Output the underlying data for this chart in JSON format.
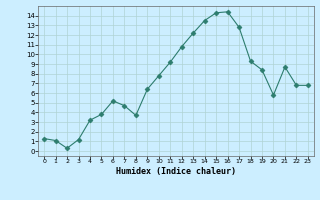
{
  "x": [
    0,
    1,
    2,
    3,
    4,
    5,
    6,
    7,
    8,
    9,
    10,
    11,
    12,
    13,
    14,
    15,
    16,
    17,
    18,
    19,
    20,
    21,
    22,
    23
  ],
  "y": [
    1.3,
    1.1,
    0.3,
    1.2,
    3.2,
    3.8,
    5.2,
    4.7,
    3.7,
    6.4,
    7.8,
    9.2,
    10.8,
    12.2,
    13.5,
    14.3,
    14.4,
    12.8,
    9.3,
    8.4,
    5.8,
    8.7,
    6.8,
    6.8
  ],
  "line_color": "#2d7d6e",
  "marker": "D",
  "marker_size": 2.5,
  "bg_color": "#cceeff",
  "grid_color": "#b0d4d4",
  "xlabel": "Humidex (Indice chaleur)",
  "ylim": [
    -0.5,
    15
  ],
  "xlim": [
    -0.5,
    23.5
  ],
  "yticks": [
    0,
    1,
    2,
    3,
    4,
    5,
    6,
    7,
    8,
    9,
    10,
    11,
    12,
    13,
    14
  ],
  "xticks": [
    0,
    1,
    2,
    3,
    4,
    5,
    6,
    7,
    8,
    9,
    10,
    11,
    12,
    13,
    14,
    15,
    16,
    17,
    18,
    19,
    20,
    21,
    22,
    23
  ]
}
